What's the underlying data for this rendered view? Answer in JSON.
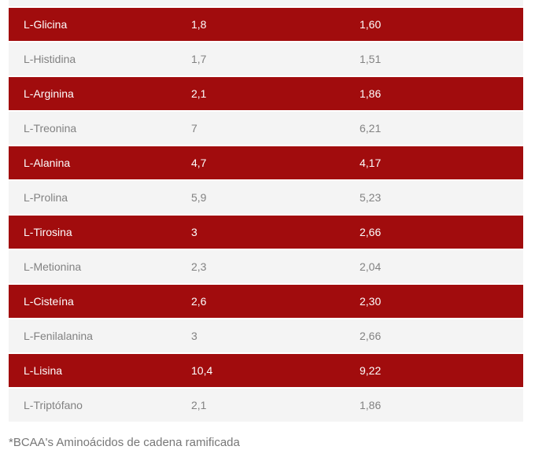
{
  "colors": {
    "highlight_row_bg": "#a10c0d",
    "highlight_row_text": "#ffffff",
    "alt_row_bg": "#f4f4f4",
    "alt_row_text": "#828282",
    "footnote_text": "#777777",
    "page_bg": "#ffffff"
  },
  "chart_data": {
    "type": "table",
    "columns_visible": false,
    "row_style": "alternating dark-red highlight / light-gray",
    "rows": [
      [
        "L-Glicina",
        "1,8",
        "1,60"
      ],
      [
        "L-Histidina",
        "1,7",
        "1,51"
      ],
      [
        "L-Arginina",
        "2,1",
        "1,86"
      ],
      [
        "L-Treonina",
        "7",
        "6,21"
      ],
      [
        "L-Alanina",
        "4,7",
        "4,17"
      ],
      [
        "L-Prolina",
        "5,9",
        "5,23"
      ],
      [
        "L-Tirosina",
        "3",
        "2,66"
      ],
      [
        "L-Metionina",
        "2,3",
        "2,04"
      ],
      [
        "L-Cisteína",
        "2,6",
        "2,30"
      ],
      [
        "L-Fenilalanina",
        "3",
        "2,66"
      ],
      [
        "L-Lisina",
        "10,4",
        "9,22"
      ],
      [
        "L-Triptófano",
        "2,1",
        "1,86"
      ]
    ],
    "note": "*BCAA's Aminoácidos de cadena ramificada"
  }
}
